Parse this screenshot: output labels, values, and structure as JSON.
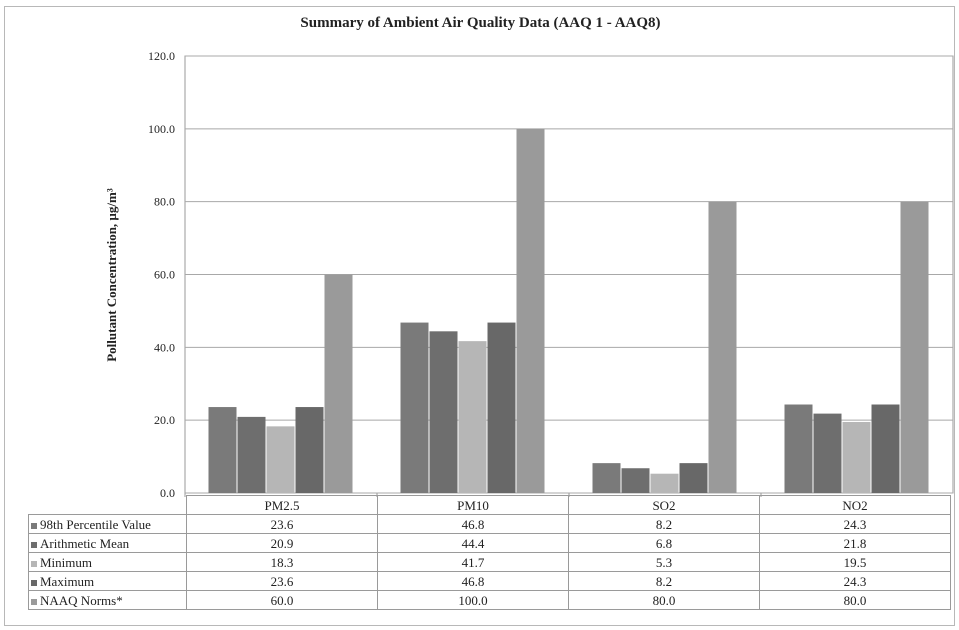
{
  "chart_data": {
    "type": "bar",
    "title": "Summary of Ambient Air Quality Data (AAQ 1 - AAQ8)",
    "xlabel": "",
    "ylabel": "Pollutant Concentration, µg/m³",
    "ylim": [
      0,
      120
    ],
    "yticks": [
      "0.0",
      "20.0",
      "40.0",
      "60.0",
      "80.0",
      "100.0",
      "120.0"
    ],
    "grid": true,
    "legend": "data-table",
    "categories": [
      "PM2.5",
      "PM10",
      "SO2",
      "NO2"
    ],
    "series": [
      {
        "name": "98th Percentile Value",
        "values": [
          23.6,
          46.8,
          8.2,
          24.3
        ],
        "labels": [
          "23.6",
          "46.8",
          "8.2",
          "24.3"
        ],
        "color": "#7a7a7a"
      },
      {
        "name": "Arithmetic Mean",
        "values": [
          20.9,
          44.4,
          6.8,
          21.8
        ],
        "labels": [
          "20.9",
          "44.4",
          "6.8",
          "21.8"
        ],
        "color": "#6e6e6e"
      },
      {
        "name": "Minimum",
        "values": [
          18.3,
          41.7,
          5.3,
          19.5
        ],
        "labels": [
          "18.3",
          "41.7",
          "5.3",
          "19.5"
        ],
        "color": "#b6b6b6"
      },
      {
        "name": "Maximum",
        "values": [
          23.6,
          46.8,
          8.2,
          24.3
        ],
        "labels": [
          "23.6",
          "46.8",
          "8.2",
          "24.3"
        ],
        "color": "#686868"
      },
      {
        "name": "NAAQ Norms*",
        "values": [
          60.0,
          100.0,
          80.0,
          80.0
        ],
        "labels": [
          "60.0",
          "100.0",
          "80.0",
          "80.0"
        ],
        "color": "#9a9a9a"
      }
    ]
  }
}
